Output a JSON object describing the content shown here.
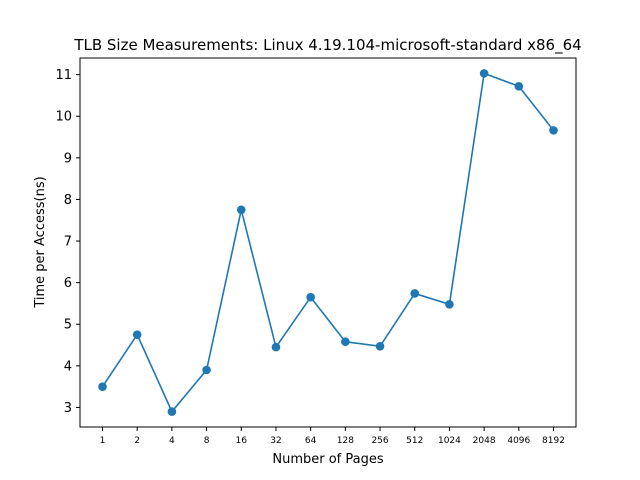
{
  "chart_data": {
    "type": "line",
    "title": "TLB Size Measurements: Linux 4.19.104-microsoft-standard x86_64",
    "xlabel": "Number of Pages",
    "ylabel": "Time per Access(ns)",
    "categories": [
      "1",
      "2",
      "4",
      "8",
      "16",
      "32",
      "64",
      "128",
      "256",
      "512",
      "1024",
      "2048",
      "4096",
      "8192"
    ],
    "series": [
      {
        "values": [
          3.5,
          4.75,
          2.9,
          3.9,
          7.75,
          4.45,
          5.65,
          4.58,
          4.47,
          5.74,
          5.48,
          11.03,
          10.72,
          9.66
        ],
        "color": "#1f77b4"
      }
    ],
    "ylim": [
      2.53,
      11.4
    ],
    "yticks": [
      3,
      4,
      5,
      6,
      7,
      8,
      9,
      10,
      11
    ],
    "grid": false,
    "marker": "circle"
  }
}
